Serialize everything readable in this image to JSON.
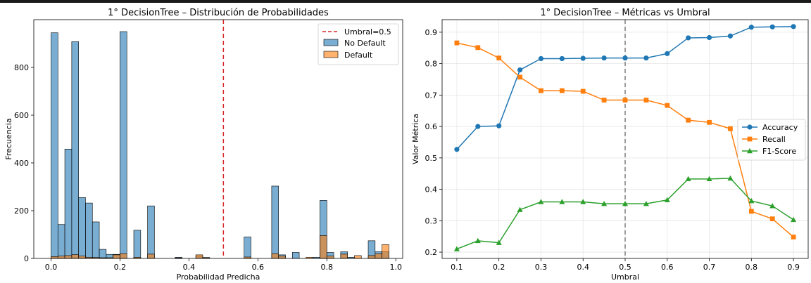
{
  "chart_data": [
    {
      "type": "bar",
      "title": "1° DecisionTree – Distribución de Probabilidades",
      "xlabel": "Probabilidad Predicha",
      "ylabel": "Frecuencia",
      "xlim": [
        -0.05,
        1.02
      ],
      "ylim": [
        0,
        1000
      ],
      "xticks": [
        0.0,
        0.2,
        0.4,
        0.6,
        0.8,
        1.0
      ],
      "xtick_labels": [
        "0.0",
        "0.2",
        "0.4",
        "0.6",
        "0.8",
        "1.0"
      ],
      "yticks": [
        0,
        200,
        400,
        600,
        800
      ],
      "ytick_labels": [
        "0",
        "200",
        "400",
        "600",
        "800"
      ],
      "bin_width": 0.02,
      "threshold": {
        "name": "Umbral=0.5",
        "value": 0.5,
        "color": "#d62728"
      },
      "legend_position": "top-right",
      "series": [
        {
          "name": "No Default",
          "color": "#1f77b4",
          "bins": [
            [
              0.0,
              945
            ],
            [
              0.02,
              142
            ],
            [
              0.04,
              458
            ],
            [
              0.06,
              908
            ],
            [
              0.08,
              255
            ],
            [
              0.1,
              232
            ],
            [
              0.12,
              153
            ],
            [
              0.14,
              38
            ],
            [
              0.16,
              17
            ],
            [
              0.18,
              17
            ],
            [
              0.2,
              950
            ],
            [
              0.24,
              118
            ],
            [
              0.28,
              220
            ],
            [
              0.36,
              5
            ],
            [
              0.42,
              10
            ],
            [
              0.44,
              4
            ],
            [
              0.56,
              90
            ],
            [
              0.64,
              303
            ],
            [
              0.66,
              15
            ],
            [
              0.7,
              25
            ],
            [
              0.76,
              5
            ],
            [
              0.78,
              243
            ],
            [
              0.8,
              25
            ],
            [
              0.84,
              28
            ],
            [
              0.86,
              5
            ],
            [
              0.92,
              74
            ],
            [
              0.94,
              28
            ],
            [
              0.96,
              28
            ]
          ]
        },
        {
          "name": "Default",
          "color": "#ff7f0e",
          "bins": [
            [
              0.0,
              8
            ],
            [
              0.02,
              10
            ],
            [
              0.04,
              12
            ],
            [
              0.06,
              16
            ],
            [
              0.08,
              10
            ],
            [
              0.1,
              5
            ],
            [
              0.12,
              4
            ],
            [
              0.14,
              3
            ],
            [
              0.16,
              3
            ],
            [
              0.18,
              15
            ],
            [
              0.2,
              20
            ],
            [
              0.24,
              5
            ],
            [
              0.28,
              18
            ],
            [
              0.36,
              2
            ],
            [
              0.42,
              15
            ],
            [
              0.44,
              3
            ],
            [
              0.56,
              6
            ],
            [
              0.64,
              20
            ],
            [
              0.66,
              10
            ],
            [
              0.74,
              5
            ],
            [
              0.78,
              96
            ],
            [
              0.8,
              10
            ],
            [
              0.84,
              18
            ],
            [
              0.88,
              12
            ],
            [
              0.92,
              12
            ],
            [
              0.94,
              20
            ],
            [
              0.96,
              58
            ]
          ]
        }
      ]
    },
    {
      "type": "line",
      "title": "1° DecisionTree – Métricas vs Umbral",
      "xlabel": "Umbral",
      "ylabel": "Valor Métrica",
      "xlim": [
        0.065,
        0.935
      ],
      "ylim": [
        0.18,
        0.94
      ],
      "xticks": [
        0.1,
        0.2,
        0.3,
        0.4,
        0.5,
        0.6,
        0.7,
        0.8,
        0.9
      ],
      "xtick_labels": [
        "0.1",
        "0.2",
        "0.3",
        "0.4",
        "0.5",
        "0.6",
        "0.7",
        "0.8",
        "0.9"
      ],
      "yticks": [
        0.2,
        0.3,
        0.4,
        0.5,
        0.6,
        0.7,
        0.8,
        0.9
      ],
      "ytick_labels": [
        "0.2",
        "0.3",
        "0.4",
        "0.5",
        "0.6",
        "0.7",
        "0.8",
        "0.9"
      ],
      "grid": true,
      "threshold": {
        "value": 0.5,
        "color": "#7f7f7f"
      },
      "legend_position": "center-right",
      "x": [
        0.1,
        0.15,
        0.2,
        0.25,
        0.3,
        0.35,
        0.4,
        0.45,
        0.5,
        0.55,
        0.6,
        0.65,
        0.7,
        0.75,
        0.8,
        0.85,
        0.9
      ],
      "series": [
        {
          "name": "Accuracy",
          "color": "#1f77b4",
          "marker": "circle",
          "values": [
            0.527,
            0.6,
            0.602,
            0.78,
            0.816,
            0.816,
            0.817,
            0.818,
            0.818,
            0.818,
            0.832,
            0.882,
            0.883,
            0.888,
            0.916,
            0.917,
            0.918
          ]
        },
        {
          "name": "Recall",
          "color": "#ff7f0e",
          "marker": "square",
          "values": [
            0.866,
            0.851,
            0.818,
            0.757,
            0.714,
            0.714,
            0.712,
            0.684,
            0.684,
            0.684,
            0.667,
            0.62,
            0.613,
            0.593,
            0.33,
            0.306,
            0.248
          ]
        },
        {
          "name": "F1-Score",
          "color": "#2ca02c",
          "marker": "triangle",
          "values": [
            0.21,
            0.236,
            0.23,
            0.335,
            0.36,
            0.36,
            0.36,
            0.354,
            0.354,
            0.354,
            0.366,
            0.433,
            0.433,
            0.435,
            0.363,
            0.347,
            0.303
          ]
        }
      ]
    }
  ]
}
